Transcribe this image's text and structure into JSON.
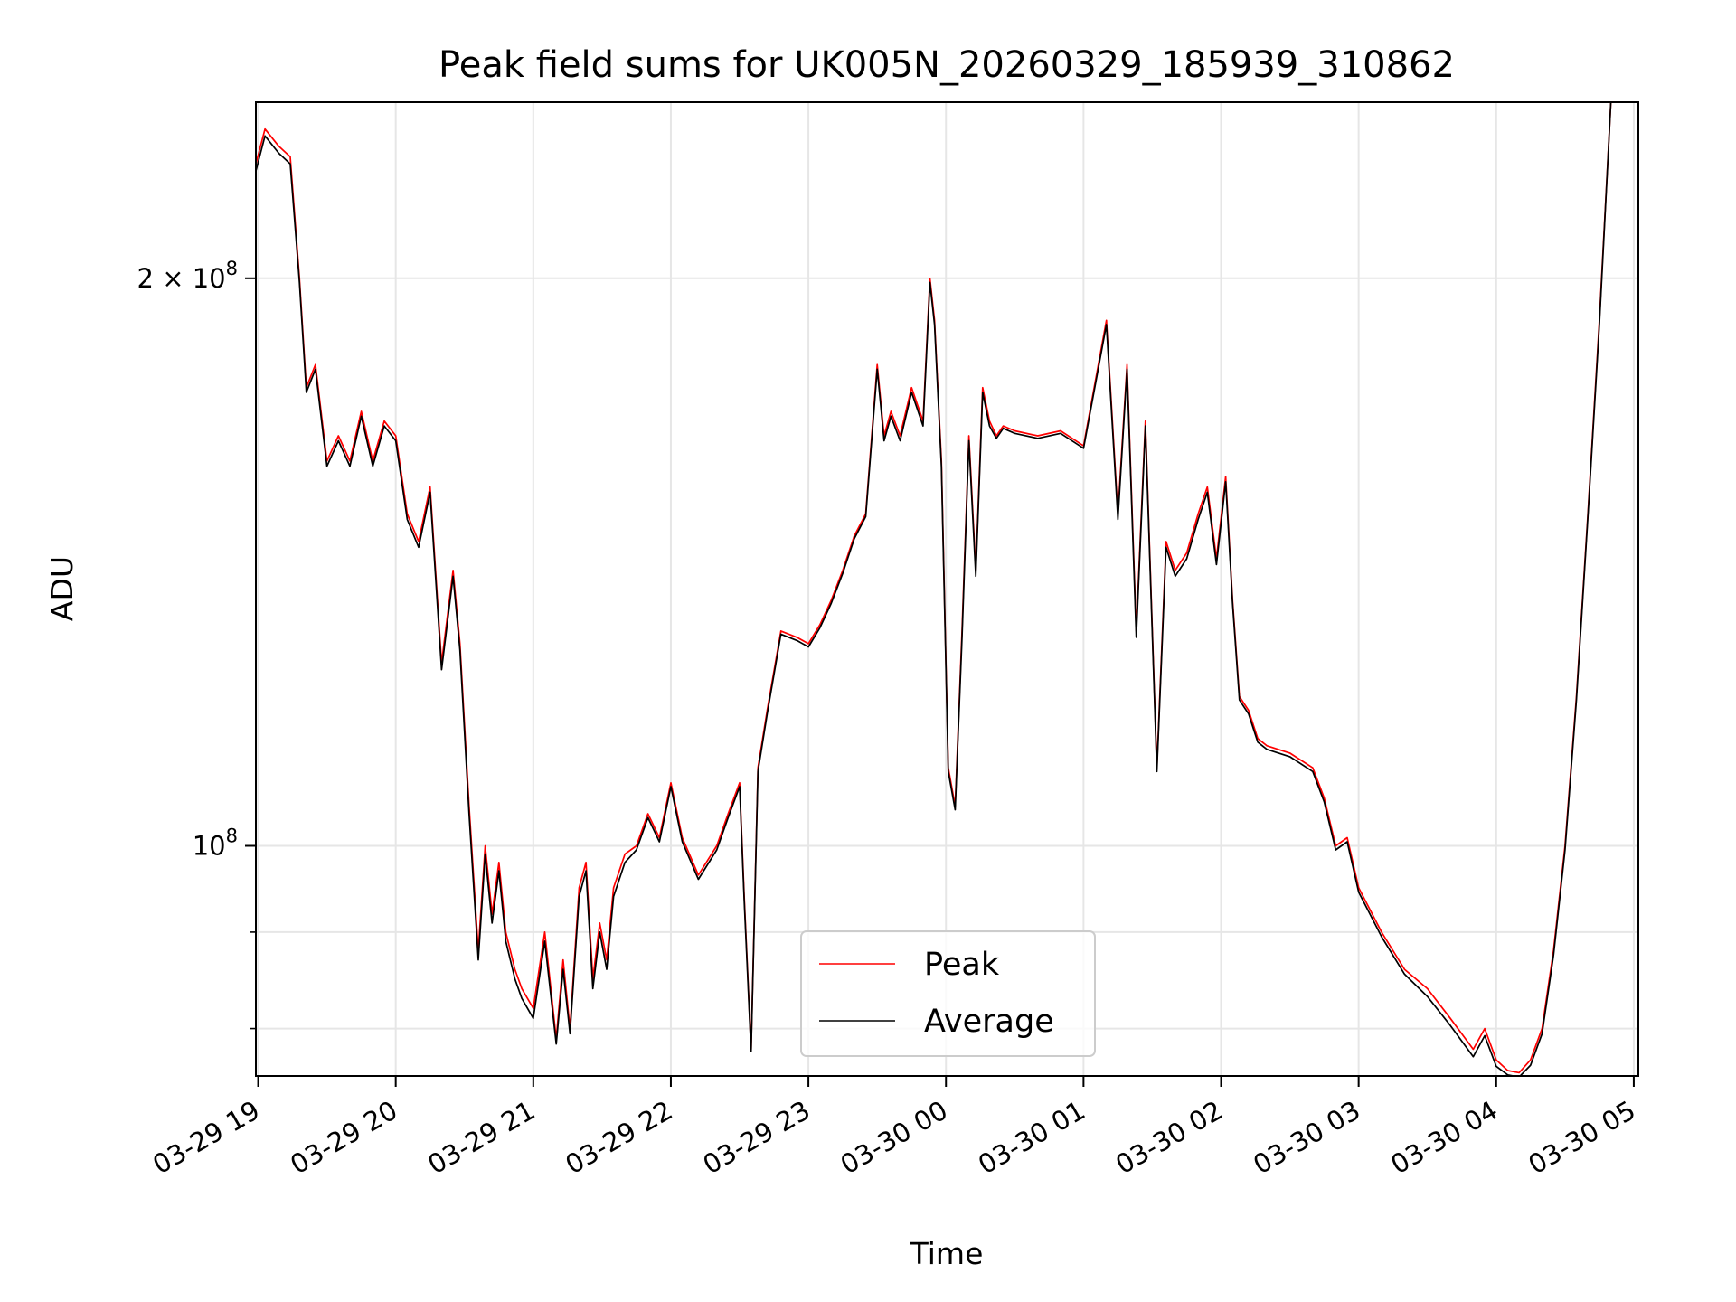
{
  "chart_data": {
    "type": "line",
    "title": "Peak field sums for UK005N_20260329_185939_310862",
    "xlabel": "Time",
    "ylabel": "ADU",
    "y_scale": "log",
    "ylim": [
      75500000,
      248000000
    ],
    "xlim": [
      "03-29 18:59",
      "03-30 05:02"
    ],
    "x_ticks": [
      "03-29 19",
      "03-29 20",
      "03-29 21",
      "03-29 22",
      "03-29 23",
      "03-30 00",
      "03-30 01",
      "03-30 02",
      "03-30 03",
      "03-30 04",
      "03-30 05"
    ],
    "y_ticks_major": [
      {
        "value": 100000000,
        "mantissa": "",
        "exponent": "8"
      },
      {
        "value": 200000000,
        "mantissa": "2 × ",
        "exponent": "8"
      }
    ],
    "y_ticks_minor": [
      80000000,
      90000000
    ],
    "grid": true,
    "legend": {
      "position": "lower-center",
      "entries": [
        "Peak",
        "Average"
      ]
    },
    "series_colors": {
      "Peak": "#ff0000",
      "Average": "#000000"
    },
    "x_times": [
      "03-29 18:59",
      "03-29 19:03",
      "03-29 19:09",
      "03-29 19:14",
      "03-29 19:18",
      "03-29 19:21",
      "03-29 19:25",
      "03-29 19:30",
      "03-29 19:35",
      "03-29 19:40",
      "03-29 19:45",
      "03-29 19:50",
      "03-29 19:55",
      "03-29 20:00",
      "03-29 20:05",
      "03-29 20:10",
      "03-29 20:15",
      "03-29 20:20",
      "03-29 20:25",
      "03-29 20:28",
      "03-29 20:32",
      "03-29 20:36",
      "03-29 20:39",
      "03-29 20:42",
      "03-29 20:45",
      "03-29 20:48",
      "03-29 20:52",
      "03-29 20:55",
      "03-29 21:00",
      "03-29 21:05",
      "03-29 21:10",
      "03-29 21:13",
      "03-29 21:16",
      "03-29 21:20",
      "03-29 21:23",
      "03-29 21:26",
      "03-29 21:29",
      "03-29 21:32",
      "03-29 21:35",
      "03-29 21:40",
      "03-29 21:45",
      "03-29 21:50",
      "03-29 21:55",
      "03-29 22:00",
      "03-29 22:05",
      "03-29 22:12",
      "03-29 22:20",
      "03-29 22:25",
      "03-29 22:30",
      "03-29 22:32",
      "03-29 22:35",
      "03-29 22:38",
      "03-29 22:42",
      "03-29 22:48",
      "03-29 22:55",
      "03-29 23:00",
      "03-29 23:05",
      "03-29 23:10",
      "03-29 23:15",
      "03-29 23:20",
      "03-29 23:25",
      "03-29 23:30",
      "03-29 23:33",
      "03-29 23:36",
      "03-29 23:40",
      "03-29 23:45",
      "03-29 23:50",
      "03-29 23:53",
      "03-29 23:55",
      "03-29 23:58",
      "03-30 00:01",
      "03-30 00:04",
      "03-30 00:07",
      "03-30 00:10",
      "03-30 00:13",
      "03-30 00:16",
      "03-30 00:19",
      "03-30 00:22",
      "03-30 00:25",
      "03-30 00:30",
      "03-30 00:40",
      "03-30 00:50",
      "03-30 01:00",
      "03-30 01:10",
      "03-30 01:15",
      "03-30 01:19",
      "03-30 01:23",
      "03-30 01:27",
      "03-30 01:32",
      "03-30 01:36",
      "03-30 01:40",
      "03-30 01:45",
      "03-30 01:50",
      "03-30 01:54",
      "03-30 01:58",
      "03-30 02:02",
      "03-30 02:05",
      "03-30 02:08",
      "03-30 02:12",
      "03-30 02:16",
      "03-30 02:20",
      "03-30 02:30",
      "03-30 02:40",
      "03-30 02:45",
      "03-30 02:50",
      "03-30 02:55",
      "03-30 03:00",
      "03-30 03:10",
      "03-30 03:20",
      "03-30 03:30",
      "03-30 03:40",
      "03-30 03:50",
      "03-30 03:55",
      "03-30 04:00",
      "03-30 04:05",
      "03-30 04:10",
      "03-30 04:15",
      "03-30 04:20",
      "03-30 04:25",
      "03-30 04:30",
      "03-30 04:35",
      "03-30 04:40",
      "03-30 04:45",
      "03-30 04:50"
    ],
    "series": [
      {
        "name": "Peak",
        "values": [
          230000000,
          240000000,
          235000000,
          232000000,
          200000000,
          175000000,
          180000000,
          160000000,
          165000000,
          160000000,
          170000000,
          160000000,
          168000000,
          165000000,
          150000000,
          145000000,
          155000000,
          125000000,
          140000000,
          128000000,
          105000000,
          88000000,
          100000000,
          92000000,
          98000000,
          90000000,
          86000000,
          84000000,
          82000000,
          90000000,
          79000000,
          87000000,
          80000000,
          95000000,
          98000000,
          85000000,
          91000000,
          87000000,
          95000000,
          99000000,
          100000000,
          104000000,
          101000000,
          108000000,
          101000000,
          96500000,
          100000000,
          104000000,
          108000000,
          94000000,
          78000000,
          110000000,
          118000000,
          130000000,
          129000000,
          128000000,
          131000000,
          135000000,
          140000000,
          146000000,
          150000000,
          180000000,
          165000000,
          170000000,
          165000000,
          175000000,
          168000000,
          200000000,
          190000000,
          160000000,
          110000000,
          105000000,
          130000000,
          165000000,
          140000000,
          175000000,
          168000000,
          165000000,
          167000000,
          166000000,
          165000000,
          166000000,
          163000000,
          190000000,
          150000000,
          180000000,
          130000000,
          168000000,
          110000000,
          145000000,
          140000000,
          143000000,
          150000000,
          155000000,
          142000000,
          157000000,
          135000000,
          120000000,
          118000000,
          114000000,
          113000000,
          112000000,
          110000000,
          106000000,
          100000000,
          101000000,
          95000000,
          90000000,
          86000000,
          84000000,
          81000000,
          78000000,
          80000000,
          77000000,
          76000000,
          75800000,
          77000000,
          80000000,
          88000000,
          100000000,
          120000000,
          150000000,
          190000000,
          248000000
        ]
      },
      {
        "name": "Average",
        "values": [
          228000000,
          238000000,
          233000000,
          230000000,
          199000000,
          174000000,
          179000000,
          159000000,
          164000000,
          159000000,
          169000000,
          159000000,
          167000000,
          164000000,
          149000000,
          144000000,
          154000000,
          124000000,
          139000000,
          127000000,
          104000000,
          87000000,
          99000000,
          91000000,
          97000000,
          89000000,
          85000000,
          83000000,
          81000000,
          89000000,
          78500000,
          86000000,
          79500000,
          94000000,
          97000000,
          84000000,
          90000000,
          86000000,
          94000000,
          98000000,
          99500000,
          103500000,
          100500000,
          107500000,
          100500000,
          96000000,
          99500000,
          103500000,
          107500000,
          93500000,
          77800000,
          109500000,
          117500000,
          129500000,
          128500000,
          127500000,
          130500000,
          134500000,
          139500000,
          145500000,
          149500000,
          179000000,
          164000000,
          169000000,
          164000000,
          174000000,
          167000000,
          199000000,
          189000000,
          159000000,
          109500000,
          104500000,
          129000000,
          164000000,
          139000000,
          174000000,
          167000000,
          164500000,
          166500000,
          165500000,
          164500000,
          165500000,
          162500000,
          189000000,
          149000000,
          179000000,
          129000000,
          167000000,
          109500000,
          144000000,
          139000000,
          142000000,
          149000000,
          154000000,
          141000000,
          156000000,
          134500000,
          119500000,
          117500000,
          113500000,
          112500000,
          111500000,
          109500000,
          105500000,
          99500000,
          100500000,
          94500000,
          89500000,
          85500000,
          83200000,
          80300000,
          77300000,
          79300000,
          76400000,
          75600000,
          75400000,
          76500000,
          79500000,
          87500000,
          99500000,
          119500000,
          149500000,
          189000000,
          248000000
        ]
      }
    ]
  }
}
